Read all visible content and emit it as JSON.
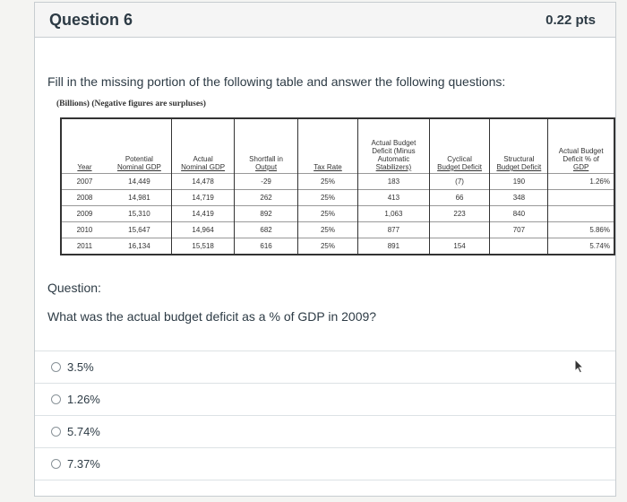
{
  "header": {
    "title": "Question 6",
    "points": "0.22 pts"
  },
  "instructions": "Fill in the missing portion of the following table and answer the following questions:",
  "table_note": "(Billions) (Negative figures are surpluses)",
  "table": {
    "headers": [
      "Year",
      "Potential\nNominal GDP",
      "Actual\nNominal GDP",
      "Shortfall in\nOutput",
      "Tax Rate",
      "Actual Budget\nDeficit (Minus\nAutomatic\nStabilizers)",
      "Cyclical\nBudget Deficit",
      "Structural\nBudget Deficit",
      "Actual Budget\nDeficit % of\nGDP"
    ],
    "rows": [
      [
        "2007",
        "14,449",
        "14,478",
        "-29",
        "25%",
        "183",
        "(7)",
        "190",
        "1.26%"
      ],
      [
        "2008",
        "14,981",
        "14,719",
        "262",
        "25%",
        "413",
        "66",
        "348",
        ""
      ],
      [
        "2009",
        "15,310",
        "14,419",
        "892",
        "25%",
        "1,063",
        "223",
        "840",
        ""
      ],
      [
        "2010",
        "15,647",
        "14,964",
        "682",
        "25%",
        "877",
        "",
        "707",
        "5.86%"
      ],
      [
        "2011",
        "16,134",
        "15,518",
        "616",
        "25%",
        "891",
        "154",
        "",
        "5.74%"
      ]
    ]
  },
  "question_label": "Question:",
  "question_text": "What was the actual budget deficit as a % of GDP in 2009?",
  "answers": [
    {
      "label": "3.5%"
    },
    {
      "label": "1.26%"
    },
    {
      "label": "5.74%"
    },
    {
      "label": "7.37%"
    }
  ]
}
